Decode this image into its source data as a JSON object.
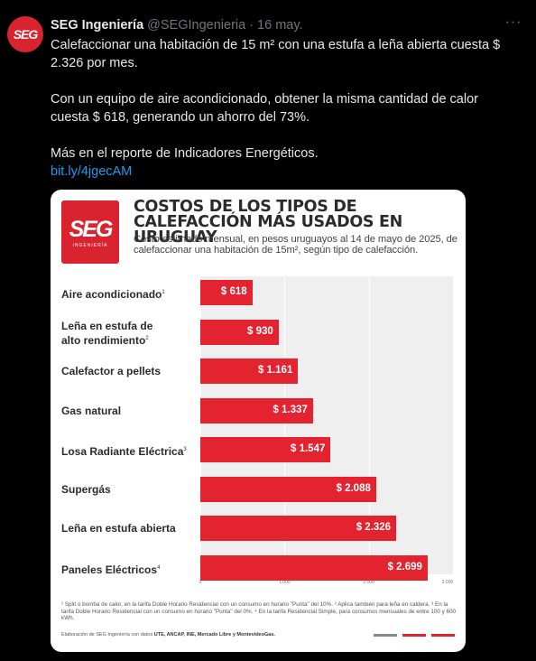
{
  "tweet": {
    "avatar_text": "SEG",
    "author_name": "SEG Ingeniería",
    "handle": "@SEGIngenieria",
    "separator": "·",
    "date": "16 may.",
    "more_label": "···",
    "paragraph1": "Calefaccionar una habitación de 15 m² con una estufa a leña abierta cuesta $ 2.326 por mes.",
    "paragraph2": "Con un equipo de aire acondicionado, obtener la misma cantidad de calor cuesta $ 618, generando un ahorro del 73%.",
    "paragraph3": "Más en el reporte de Indicadores Energéticos.",
    "link": "bit.ly/4jgecAM"
  },
  "card": {
    "logo_text": "SEG",
    "logo_sub": "INGENIERÍA",
    "title": "COSTOS DE LOS TIPOS DE CALEFACCIÓN MÁS USADOS EN URUGUAY",
    "subtitle": "Costo estimado mensual, en pesos uruguayos al 14 de mayo de 2025, de calefaccionar una habitación de 15m², según tipo de calefacción.",
    "footnote": "¹ Split o bomba de calor, en la tarifa Doble Horario Residencial con un consumo en horario \"Punta\" del 10%. ² Aplica también para leña en caldera. ³ En la tarifa Doble Horario Residencial con un consumo en horario \"Punta\" del 0%. ⁴ En la tarifa Residencial Simple, para consumos mensuales de entre 100 y 600 kWh.",
    "source_prefix": "Elaboración de SEG Ingeniería con datos ",
    "source_bold": "UTE, ANCAP, INE, Mercado Libre y MontevideoGas."
  },
  "chart_data": {
    "type": "bar",
    "orientation": "horizontal",
    "title": "COSTOS DE LOS TIPOS DE CALEFACCIÓN MÁS USADOS EN URUGUAY",
    "categories": [
      "Aire acondicionado",
      "Leña en estufa de alto rendimiento",
      "Calefactor a pellets",
      "Gas natural",
      "Losa Radiante Eléctrica",
      "Supergás",
      "Leña en estufa abierta",
      "Paneles Eléctricos"
    ],
    "category_notes": [
      "1",
      "2",
      "",
      "",
      "3",
      "",
      "",
      "4"
    ],
    "values": [
      618,
      930,
      1161,
      1337,
      1547,
      2088,
      2326,
      2699
    ],
    "value_labels": [
      "$ 618",
      "$ 930",
      "$ 1.161",
      "$ 1.337",
      "$ 1.547",
      "$ 2.088",
      "$ 2.326",
      "$ 2.699"
    ],
    "xlim": [
      0,
      3000
    ],
    "xticks": [
      0,
      1000,
      2000,
      3000
    ],
    "xtick_labels": [
      "0",
      "1.000",
      "2.000",
      "3.000"
    ],
    "grid": true,
    "colors": {
      "bar": "#e3232f",
      "background": "#efefef"
    }
  },
  "legend_colors": [
    "#888888",
    "#e3232f",
    "#e3232f"
  ]
}
